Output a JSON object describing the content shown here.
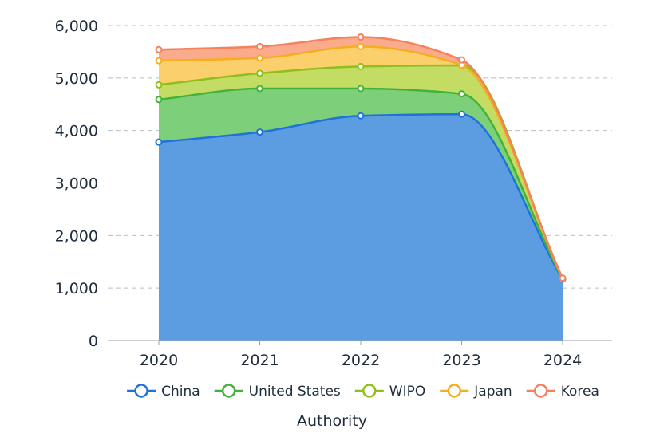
{
  "chart_data": {
    "type": "area",
    "stacked": true,
    "smooth": true,
    "categories": [
      "2020",
      "2021",
      "2022",
      "2023",
      "2024"
    ],
    "series": [
      {
        "name": "China",
        "color": "#1e73d8",
        "fill": "#5b9de0",
        "values": [
          3780,
          3970,
          4280,
          4310,
          1170
        ]
      },
      {
        "name": "United States",
        "color": "#42b33a",
        "fill": "#7ecf79",
        "values": [
          810,
          830,
          520,
          390,
          5
        ]
      },
      {
        "name": "WIPO",
        "color": "#8fbf1b",
        "fill": "#c3dc63",
        "values": [
          280,
          290,
          420,
          540,
          5
        ]
      },
      {
        "name": "Japan",
        "color": "#f5ae1e",
        "fill": "#fbcf6c",
        "values": [
          460,
          290,
          380,
          5,
          5
        ]
      },
      {
        "name": "Korea",
        "color": "#f5825c",
        "fill": "#f9ab8c",
        "values": [
          210,
          220,
          180,
          100,
          5
        ]
      }
    ],
    "xlabel": "Authority",
    "ylabel": "",
    "ylim": [
      0,
      6000
    ],
    "yticks": [
      "0",
      "1,000",
      "2,000",
      "3,000",
      "4,000",
      "5,000",
      "6,000"
    ],
    "ytick_values": [
      0,
      1000,
      2000,
      3000,
      4000,
      5000,
      6000
    ],
    "grid": true,
    "legend_position": "bottom"
  }
}
